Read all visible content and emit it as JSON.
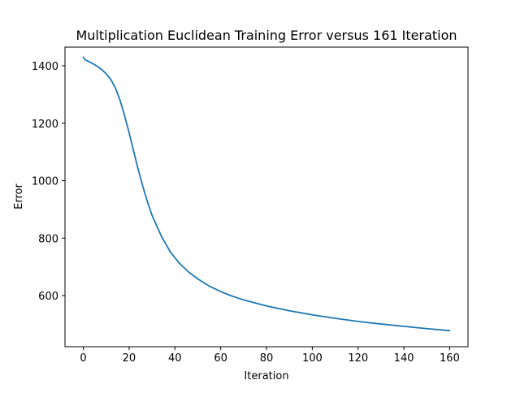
{
  "chart_data": {
    "type": "line",
    "title": "Multiplication Euclidean Training Error versus 161 Iteration",
    "xlabel": "Iteration",
    "ylabel": "Error",
    "xlim": [
      -8,
      168
    ],
    "ylim": [
      422,
      1465
    ],
    "xticks": [
      0,
      20,
      40,
      60,
      80,
      100,
      120,
      140,
      160
    ],
    "yticks": [
      600,
      800,
      1000,
      1200,
      1400
    ],
    "grid": false,
    "legend": "none",
    "series": [
      {
        "color": "#1f77b4",
        "x": [
          0,
          1,
          2,
          4,
          6,
          8,
          10,
          12,
          14,
          16,
          18,
          20,
          22,
          24,
          26,
          28,
          30,
          34,
          38,
          42,
          46,
          50,
          55,
          60,
          65,
          70,
          80,
          90,
          100,
          110,
          120,
          130,
          140,
          150,
          160
        ],
        "y": [
          1430,
          1420,
          1416,
          1408,
          1399,
          1387,
          1372,
          1352,
          1323,
          1281,
          1227,
          1167,
          1102,
          1038,
          980,
          927,
          880,
          808,
          752,
          712,
          682,
          658,
          633,
          614,
          598,
          585,
          564,
          547,
          533,
          521,
          510,
          501,
          493,
          485,
          478
        ]
      }
    ]
  }
}
